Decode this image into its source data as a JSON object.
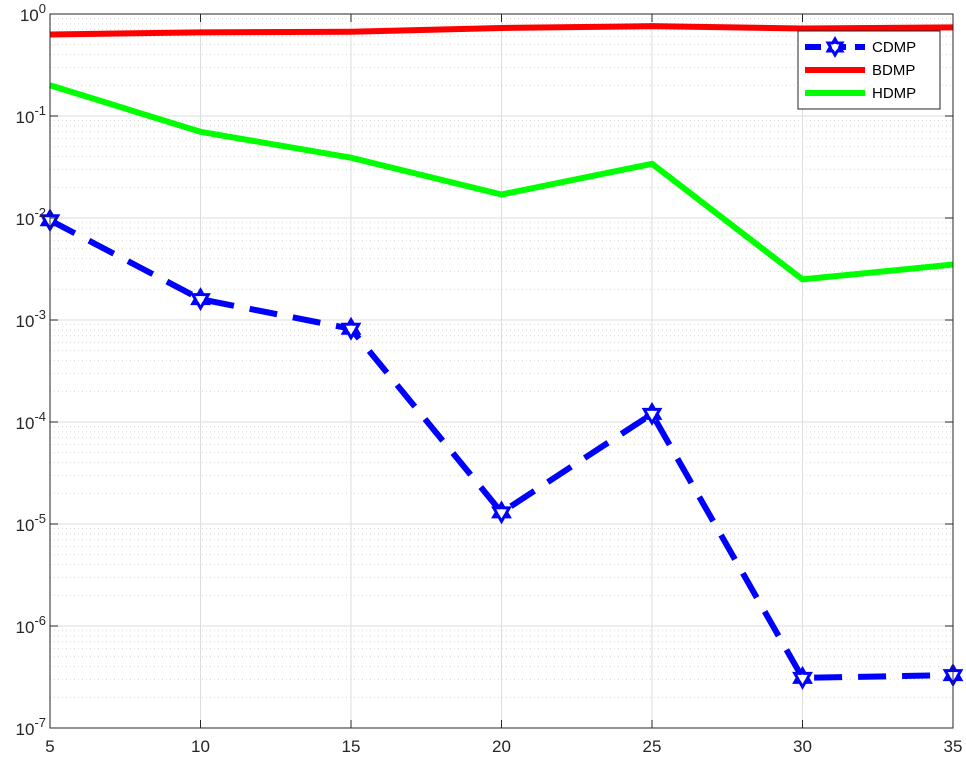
{
  "chart_data": {
    "type": "line",
    "title": "",
    "xlabel": "",
    "ylabel": "",
    "x": [
      5,
      10,
      15,
      20,
      25,
      30,
      35
    ],
    "xlim": [
      5,
      35
    ],
    "ylim": [
      1e-07,
      1
    ],
    "yscale": "log",
    "grid": true,
    "minor_grid": true,
    "legend_position": "top-right",
    "x_ticks": [
      5,
      10,
      15,
      20,
      25,
      30,
      35
    ],
    "y_ticks": [
      {
        "base": "10",
        "exp": "-7"
      },
      {
        "base": "10",
        "exp": "-6"
      },
      {
        "base": "10",
        "exp": "-5"
      },
      {
        "base": "10",
        "exp": "-4"
      },
      {
        "base": "10",
        "exp": "-3"
      },
      {
        "base": "10",
        "exp": "-2"
      },
      {
        "base": "10",
        "exp": "-1"
      },
      {
        "base": "10",
        "exp": "0"
      }
    ],
    "series": [
      {
        "name": "CDMP",
        "color": "#0000ff",
        "style": "dashed",
        "marker": "hexagram",
        "values": [
          0.0095,
          0.0016,
          0.00082,
          1.3e-05,
          0.00012,
          3.1e-07,
          3.3e-07
        ]
      },
      {
        "name": "BDMP",
        "color": "#ff0000",
        "style": "solid",
        "marker": "none",
        "values": [
          0.63,
          0.66,
          0.67,
          0.73,
          0.76,
          0.72,
          0.74
        ]
      },
      {
        "name": "HDMP",
        "color": "#00ff00",
        "style": "solid",
        "marker": "none",
        "values": [
          0.2,
          0.07,
          0.039,
          0.017,
          0.034,
          0.0025,
          0.0035
        ]
      }
    ]
  }
}
